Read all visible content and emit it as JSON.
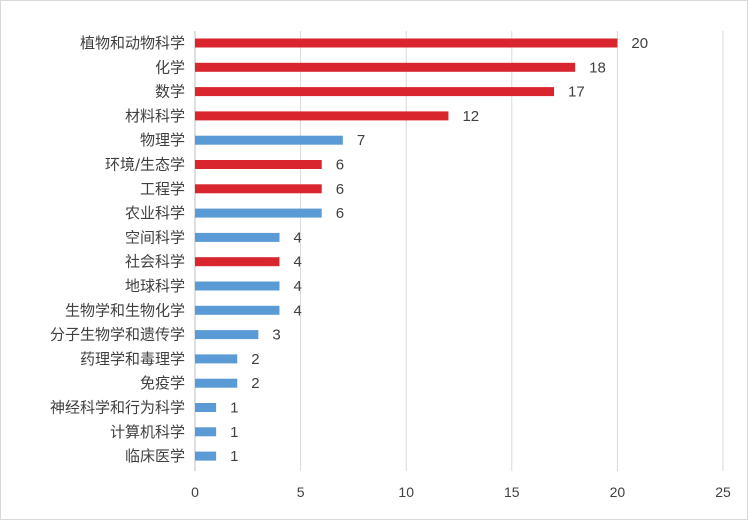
{
  "chart_data": {
    "type": "bar",
    "orientation": "horizontal",
    "categories": [
      "植物和动物科学",
      "化学",
      "数学",
      "材料科学",
      "物理学",
      "环境/生态学",
      "工程学",
      "农业科学",
      "空间科学",
      "社会科学",
      "地球科学",
      "生物学和生物化学",
      "分子生物学和遗传学",
      "药理学和毒理学",
      "免疫学",
      "神经科学和行为科学",
      "计算机科学",
      "临床医学"
    ],
    "values": [
      20,
      18,
      17,
      12,
      7,
      6,
      6,
      6,
      4,
      4,
      4,
      4,
      3,
      2,
      2,
      1,
      1,
      1
    ],
    "bar_colors": [
      "#d9262e",
      "#d9262e",
      "#d9262e",
      "#d9262e",
      "#5b9bd5",
      "#d9262e",
      "#d9262e",
      "#5b9bd5",
      "#5b9bd5",
      "#d9262e",
      "#5b9bd5",
      "#5b9bd5",
      "#5b9bd5",
      "#5b9bd5",
      "#5b9bd5",
      "#5b9bd5",
      "#5b9bd5",
      "#5b9bd5"
    ],
    "xlim": [
      0,
      25
    ],
    "x_ticks": [
      0,
      5,
      10,
      15,
      20,
      25
    ],
    "grid": "vertical",
    "legend": "none",
    "data_labels": true
  }
}
